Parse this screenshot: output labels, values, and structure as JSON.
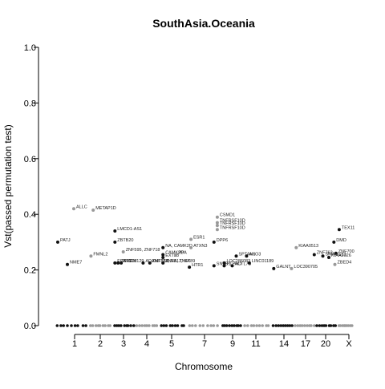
{
  "chart_data": {
    "type": "scatter",
    "title": "SouthAsia.Oceania",
    "xlabel": "Chromosome",
    "ylabel": "Vst(passed permutation test)",
    "ylim": [
      0,
      1
    ],
    "yticks": [
      "0.0",
      "0.2",
      "0.4",
      "0.6",
      "0.8",
      "1.0"
    ],
    "xticks": [
      "1",
      "2",
      "3",
      "4",
      "5",
      "7",
      "9",
      "11",
      "14",
      "17",
      "20",
      "X"
    ],
    "grid": false,
    "legend": "none",
    "colors": {
      "black": "#111111",
      "gray": "#999999"
    },
    "labeled_points": [
      {
        "label": "ALLC",
        "chrom": "1",
        "pos": 0.55,
        "y": 0.42,
        "color": "gray"
      },
      {
        "label": "PATJ",
        "chrom": "1",
        "pos": 0.05,
        "y": 0.3,
        "color": "black"
      },
      {
        "label": "NME7",
        "chrom": "1",
        "pos": 0.35,
        "y": 0.22,
        "color": "black"
      },
      {
        "label": "METAP1D",
        "chrom": "2",
        "pos": 0.15,
        "y": 0.415,
        "color": "gray"
      },
      {
        "label": "LMCD1-AS1",
        "chrom": "3",
        "pos": 0.05,
        "y": 0.34,
        "color": "black"
      },
      {
        "label": "FMNL2",
        "chrom": "2",
        "pos": 0.05,
        "y": 0.25,
        "color": "gray"
      },
      {
        "label": "ZBTB20",
        "chrom": "3",
        "pos": 0.05,
        "y": 0.3,
        "color": "black"
      },
      {
        "label": "ZNF595, ZNF718",
        "chrom": "3",
        "pos": 0.45,
        "y": 0.265,
        "color": "gray"
      },
      {
        "label": "FGFR3",
        "chrom": "3",
        "pos": 0.05,
        "y": 0.225,
        "color": "black"
      },
      {
        "label": "TMEM129",
        "chrom": "3",
        "pos": 0.35,
        "y": 0.225,
        "color": "black"
      },
      {
        "label": "ZNF718",
        "chrom": "3",
        "pos": 0.2,
        "y": 0.225,
        "color": "black"
      },
      {
        "label": "ZNF789, NA, ZNF789",
        "chrom": "4",
        "pos": 0.6,
        "y": 0.225,
        "color": "black"
      },
      {
        "label": "ADAMTS16",
        "chrom": "4",
        "pos": 0.3,
        "y": 0.225,
        "color": "black"
      },
      {
        "label": "ZNF517, NA",
        "chrom": "5",
        "pos": 0.1,
        "y": 0.225,
        "color": "black"
      },
      {
        "label": "NA, CAMK2D",
        "chrom": "5",
        "pos": 0.1,
        "y": 0.28,
        "color": "black"
      },
      {
        "label": "CAMK2D",
        "chrom": "5",
        "pos": 0.1,
        "y": 0.255,
        "color": "black"
      },
      {
        "label": "EXTL3",
        "chrom": "5",
        "pos": 0.1,
        "y": 0.245,
        "color": "black"
      },
      {
        "label": "ATXN3",
        "chrom": "7",
        "pos": 0.1,
        "y": 0.28,
        "color": "gray"
      },
      {
        "label": "PPA",
        "chrom": "5",
        "pos": 0.6,
        "y": 0.255,
        "color": "gray"
      },
      {
        "label": "ESR1",
        "chrom": "7",
        "pos": 0.1,
        "y": 0.31,
        "color": "gray"
      },
      {
        "label": "CSMD1",
        "chrom": "7",
        "pos": 0.9,
        "y": 0.39,
        "color": "gray"
      },
      {
        "label": "TNFRSF10D",
        "chrom": "7",
        "pos": 0.9,
        "y": 0.37,
        "color": "gray"
      },
      {
        "label": "TNFRSF10D",
        "chrom": "7",
        "pos": 0.9,
        "y": 0.36,
        "color": "gray"
      },
      {
        "label": "TNFRSF10D",
        "chrom": "7",
        "pos": 0.9,
        "y": 0.345,
        "color": "gray"
      },
      {
        "label": "DPP6",
        "chrom": "7",
        "pos": 0.8,
        "y": 0.3,
        "color": "black"
      },
      {
        "label": "HTR1",
        "chrom": "7",
        "pos": 0.05,
        "y": 0.21,
        "color": "black"
      },
      {
        "label": "SNTB1",
        "chrom": "7",
        "pos": 0.8,
        "y": 0.215,
        "color": "black"
      },
      {
        "label": "PTPRD",
        "chrom": "9",
        "pos": 0.1,
        "y": 0.215,
        "color": "black"
      },
      {
        "label": "LOC286083",
        "chrom": "9",
        "pos": 0.1,
        "y": 0.225,
        "color": "black"
      },
      {
        "label": "ACTL7B",
        "chrom": "9",
        "pos": 0.5,
        "y": 0.215,
        "color": "black"
      },
      {
        "label": "LINC01189",
        "chrom": "11",
        "pos": 0.2,
        "y": 0.225,
        "color": "black"
      },
      {
        "label": "SPTAN1",
        "chrom": "9",
        "pos": 0.7,
        "y": 0.25,
        "color": "black"
      },
      {
        "label": "ANO3",
        "chrom": "11",
        "pos": 0.1,
        "y": 0.25,
        "color": "black"
      },
      {
        "label": "GALNT",
        "chrom": "14",
        "pos": 0.05,
        "y": 0.205,
        "color": "black"
      },
      {
        "label": "LOC390705",
        "chrom": "14",
        "pos": 0.9,
        "y": 0.205,
        "color": "gray"
      },
      {
        "label": "KIAA0513",
        "chrom": "17",
        "pos": 0.05,
        "y": 0.28,
        "color": "gray"
      },
      {
        "label": "ZNF763",
        "chrom": "17",
        "pos": 0.95,
        "y": 0.255,
        "color": "black"
      },
      {
        "label": "DMD",
        "chrom": "20",
        "pos": 0.85,
        "y": 0.3,
        "color": "black"
      },
      {
        "label": "TEX11",
        "chrom": "X",
        "pos": 0.05,
        "y": 0.345,
        "color": "black"
      },
      {
        "label": "ZNF700",
        "chrom": "20",
        "pos": 0.95,
        "y": 0.26,
        "color": "black"
      },
      {
        "label": "SMARCE1",
        "chrom": "20",
        "pos": 0.3,
        "y": 0.25,
        "color": "black"
      },
      {
        "label": "KIAA2026",
        "chrom": "20",
        "pos": 0.6,
        "y": 0.245,
        "color": "black"
      },
      {
        "label": "ZBED4",
        "chrom": "20",
        "pos": 0.9,
        "y": 0.22,
        "color": "gray"
      }
    ]
  }
}
